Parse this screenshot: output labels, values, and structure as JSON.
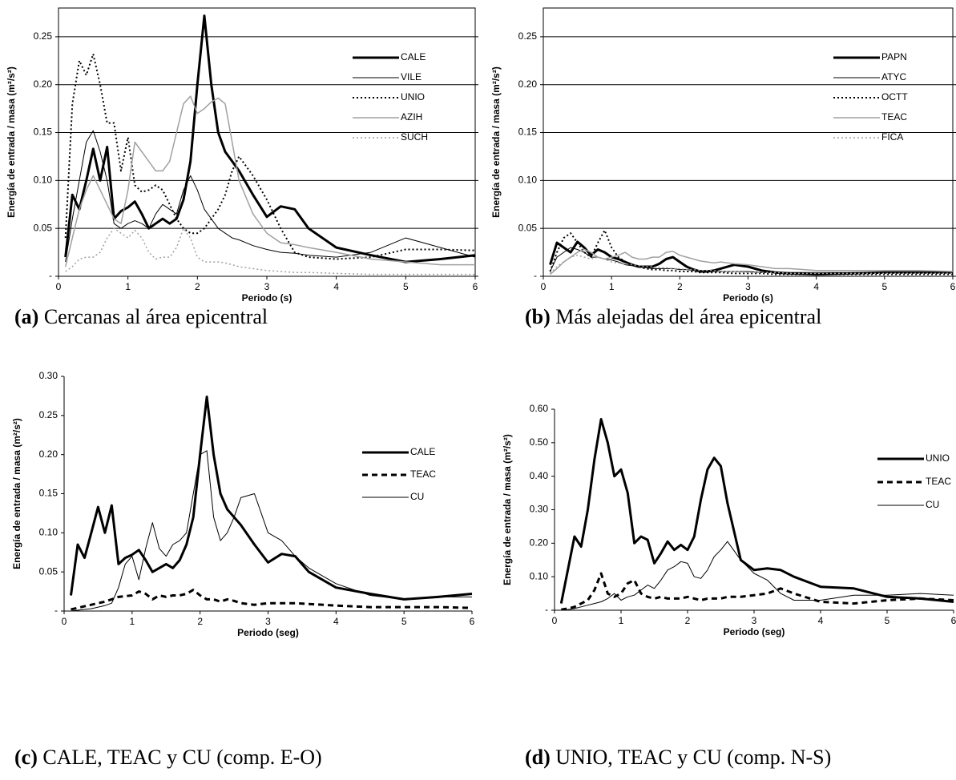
{
  "chart_data": [
    {
      "type": "line",
      "caption_label": "(a)",
      "caption": "Cercanas al área epicentral",
      "xlabel": "Periodo (s)",
      "ylabel": "Energía de entrada / masa (m²/s²)",
      "xlim": [
        0,
        6
      ],
      "xticks": [
        0,
        1,
        2,
        3,
        4,
        5,
        6
      ],
      "ylim": [
        0,
        0.28
      ],
      "yticks": [
        {
          "value": 0,
          "label": "-"
        },
        0.05,
        {
          "value": 0.1,
          "label": "0.10"
        },
        0.15,
        {
          "value": 0.2,
          "label": "0.20"
        },
        0.25
      ],
      "grid": true,
      "legend": "upper right",
      "x": [
        0.1,
        0.2,
        0.3,
        0.4,
        0.5,
        0.6,
        0.7,
        0.8,
        0.9,
        1.0,
        1.1,
        1.2,
        1.3,
        1.4,
        1.5,
        1.6,
        1.7,
        1.8,
        1.9,
        2.0,
        2.1,
        2.2,
        2.3,
        2.4,
        2.5,
        2.6,
        2.8,
        3.0,
        3.2,
        3.4,
        3.6,
        4.0,
        4.5,
        5.0,
        5.5,
        6.0
      ],
      "series": [
        {
          "name": "CALE",
          "color": "#000000",
          "width": 3,
          "dash": "solid",
          "values": [
            0.02,
            0.085,
            0.07,
            0.1,
            0.133,
            0.1,
            0.135,
            0.06,
            0.068,
            0.072,
            0.078,
            0.065,
            0.05,
            0.055,
            0.06,
            0.055,
            0.06,
            0.08,
            0.12,
            0.2,
            0.272,
            0.2,
            0.15,
            0.13,
            0.12,
            0.11,
            0.085,
            0.062,
            0.073,
            0.07,
            0.05,
            0.03,
            0.022,
            0.015,
            0.018,
            0.022
          ]
        },
        {
          "name": "VILE",
          "color": "#000000",
          "width": 1,
          "dash": "solid",
          "values": [
            0.015,
            0.06,
            0.1,
            0.14,
            0.152,
            0.13,
            0.1,
            0.055,
            0.05,
            0.055,
            0.058,
            0.055,
            0.05,
            0.065,
            0.075,
            0.07,
            0.065,
            0.09,
            0.105,
            0.09,
            0.07,
            0.06,
            0.05,
            0.045,
            0.04,
            0.038,
            0.032,
            0.028,
            0.025,
            0.024,
            0.022,
            0.02,
            0.025,
            0.04,
            0.03,
            0.02
          ]
        },
        {
          "name": "UNIO",
          "color": "#000000",
          "width": 2,
          "dash": "dotted",
          "values": [
            0.04,
            0.18,
            0.225,
            0.21,
            0.232,
            0.2,
            0.16,
            0.16,
            0.11,
            0.145,
            0.095,
            0.088,
            0.09,
            0.095,
            0.09,
            0.075,
            0.06,
            0.05,
            0.045,
            0.045,
            0.05,
            0.06,
            0.07,
            0.085,
            0.11,
            0.125,
            0.105,
            0.08,
            0.05,
            0.025,
            0.02,
            0.018,
            0.02,
            0.028,
            0.028,
            0.027
          ]
        },
        {
          "name": "AZIH",
          "color": "#a0a0a0",
          "width": 1.5,
          "dash": "solid",
          "values": [
            0.01,
            0.04,
            0.07,
            0.09,
            0.105,
            0.09,
            0.075,
            0.06,
            0.055,
            0.09,
            0.14,
            0.13,
            0.12,
            0.11,
            0.11,
            0.12,
            0.15,
            0.18,
            0.188,
            0.17,
            0.175,
            0.182,
            0.186,
            0.18,
            0.14,
            0.1,
            0.065,
            0.045,
            0.035,
            0.033,
            0.03,
            0.025,
            0.018,
            0.015,
            0.012,
            0.012
          ]
        },
        {
          "name": "SUCH",
          "color": "#a0a0a0",
          "width": 1.5,
          "dash": "dotted",
          "values": [
            0.005,
            0.01,
            0.018,
            0.02,
            0.02,
            0.025,
            0.04,
            0.05,
            0.045,
            0.04,
            0.048,
            0.04,
            0.025,
            0.018,
            0.02,
            0.02,
            0.03,
            0.05,
            0.04,
            0.02,
            0.015,
            0.015,
            0.015,
            0.014,
            0.012,
            0.01,
            0.008,
            0.006,
            0.005,
            0.004,
            0.004,
            0.003,
            0.002,
            0.002,
            0.002,
            0.002
          ]
        }
      ]
    },
    {
      "type": "line",
      "caption_label": "(b)",
      "caption": "Más alejadas del área epicentral",
      "xlabel": "Periodo (s)",
      "ylabel": "Energía de entrada / masa (m²/s²)",
      "xlim": [
        0,
        6
      ],
      "xticks": [
        0,
        1,
        2,
        3,
        4,
        5,
        6
      ],
      "ylim": [
        0,
        0.28
      ],
      "yticks": [
        {
          "value": 0,
          "label": "-"
        },
        0.05,
        {
          "value": 0.1,
          "label": "0.10"
        },
        0.15,
        {
          "value": 0.2,
          "label": "0.20"
        },
        0.25
      ],
      "grid": true,
      "legend": "upper right",
      "x": [
        0.1,
        0.2,
        0.3,
        0.4,
        0.5,
        0.6,
        0.7,
        0.8,
        0.9,
        1.0,
        1.1,
        1.2,
        1.3,
        1.4,
        1.5,
        1.6,
        1.7,
        1.8,
        1.9,
        2.0,
        2.1,
        2.2,
        2.3,
        2.4,
        2.5,
        2.6,
        2.8,
        3.0,
        3.2,
        3.4,
        3.6,
        4.0,
        4.5,
        5.0,
        5.5,
        6.0
      ],
      "series": [
        {
          "name": "PAPN",
          "color": "#000000",
          "width": 3,
          "dash": "solid",
          "values": [
            0.012,
            0.035,
            0.03,
            0.025,
            0.036,
            0.03,
            0.022,
            0.028,
            0.025,
            0.02,
            0.018,
            0.015,
            0.012,
            0.01,
            0.01,
            0.01,
            0.013,
            0.018,
            0.02,
            0.015,
            0.01,
            0.007,
            0.005,
            0.005,
            0.006,
            0.008,
            0.012,
            0.01,
            0.006,
            0.004,
            0.003,
            0.002,
            0.003,
            0.004,
            0.004,
            0.004
          ]
        },
        {
          "name": "ATYC",
          "color": "#000000",
          "width": 1,
          "dash": "solid",
          "values": [
            0.005,
            0.02,
            0.025,
            0.03,
            0.028,
            0.025,
            0.02,
            0.02,
            0.018,
            0.017,
            0.015,
            0.012,
            0.011,
            0.01,
            0.009,
            0.008,
            0.008,
            0.008,
            0.008,
            0.007,
            0.007,
            0.006,
            0.006,
            0.006,
            0.005,
            0.005,
            0.005,
            0.005,
            0.004,
            0.004,
            0.004,
            0.004,
            0.004,
            0.004,
            0.004,
            0.004
          ]
        },
        {
          "name": "OCTT",
          "color": "#000000",
          "width": 2,
          "dash": "dotted",
          "values": [
            0.005,
            0.025,
            0.04,
            0.045,
            0.035,
            0.025,
            0.02,
            0.035,
            0.048,
            0.03,
            0.02,
            0.015,
            0.012,
            0.01,
            0.008,
            0.007,
            0.007,
            0.006,
            0.006,
            0.005,
            0.005,
            0.005,
            0.004,
            0.004,
            0.004,
            0.004,
            0.003,
            0.003,
            0.003,
            0.002,
            0.002,
            0.002,
            0.002,
            0.002,
            0.002,
            0.002
          ]
        },
        {
          "name": "TEAC",
          "color": "#a0a0a0",
          "width": 1.5,
          "dash": "solid",
          "values": [
            0.002,
            0.008,
            0.015,
            0.02,
            0.025,
            0.028,
            0.025,
            0.02,
            0.018,
            0.02,
            0.022,
            0.025,
            0.02,
            0.018,
            0.018,
            0.02,
            0.02,
            0.025,
            0.026,
            0.022,
            0.02,
            0.018,
            0.016,
            0.015,
            0.014,
            0.015,
            0.013,
            0.012,
            0.01,
            0.008,
            0.008,
            0.006,
            0.006,
            0.006,
            0.006,
            0.005
          ]
        },
        {
          "name": "FICA",
          "color": "#a0a0a0",
          "width": 1.5,
          "dash": "dotted",
          "values": [
            0.003,
            0.01,
            0.015,
            0.02,
            0.022,
            0.02,
            0.018,
            0.02,
            0.018,
            0.015,
            0.014,
            0.013,
            0.012,
            0.011,
            0.01,
            0.01,
            0.009,
            0.009,
            0.008,
            0.008,
            0.007,
            0.007,
            0.006,
            0.006,
            0.006,
            0.005,
            0.005,
            0.004,
            0.004,
            0.004,
            0.003,
            0.003,
            0.003,
            0.003,
            0.003,
            0.003
          ]
        }
      ]
    },
    {
      "type": "line",
      "caption_label": "(c)",
      "caption": "CALE, TEAC y CU  (comp. E-O)",
      "xlabel": "Periodo (seg)",
      "ylabel": "Energía de entrada / masa (m²/s²)",
      "xlim": [
        0,
        6
      ],
      "xticks": [
        0,
        1,
        2,
        3,
        4,
        5,
        6
      ],
      "ylim": [
        0,
        0.3
      ],
      "yticks": [
        {
          "value": 0,
          "label": "-"
        },
        0.05,
        {
          "value": 0.1,
          "label": "0.10"
        },
        0.15,
        {
          "value": 0.2,
          "label": "0.20"
        },
        0.25,
        {
          "value": 0.3,
          "label": "0.30"
        }
      ],
      "grid": false,
      "legend": "upper right",
      "x": [
        0.1,
        0.2,
        0.3,
        0.4,
        0.5,
        0.6,
        0.7,
        0.8,
        0.9,
        1.0,
        1.1,
        1.2,
        1.3,
        1.4,
        1.5,
        1.6,
        1.7,
        1.8,
        1.9,
        2.0,
        2.1,
        2.2,
        2.3,
        2.4,
        2.5,
        2.6,
        2.8,
        3.0,
        3.2,
        3.4,
        3.6,
        4.0,
        4.5,
        5.0,
        5.5,
        6.0
      ],
      "series": [
        {
          "name": "CALE",
          "color": "#000000",
          "width": 3,
          "dash": "solid",
          "values": [
            0.02,
            0.085,
            0.068,
            0.1,
            0.133,
            0.1,
            0.135,
            0.06,
            0.068,
            0.072,
            0.078,
            0.065,
            0.05,
            0.055,
            0.06,
            0.055,
            0.065,
            0.085,
            0.12,
            0.2,
            0.274,
            0.2,
            0.15,
            0.13,
            0.12,
            0.11,
            0.085,
            0.062,
            0.073,
            0.07,
            0.05,
            0.03,
            0.022,
            0.015,
            0.018,
            0.022
          ]
        },
        {
          "name": "TEAC",
          "color": "#000000",
          "width": 3,
          "dash": "dashed",
          "values": [
            0.002,
            0.004,
            0.006,
            0.008,
            0.01,
            0.012,
            0.015,
            0.018,
            0.019,
            0.02,
            0.025,
            0.022,
            0.015,
            0.02,
            0.018,
            0.02,
            0.02,
            0.022,
            0.027,
            0.02,
            0.015,
            0.015,
            0.012,
            0.015,
            0.013,
            0.01,
            0.008,
            0.01,
            0.01,
            0.01,
            0.009,
            0.007,
            0.005,
            0.005,
            0.005,
            0.004
          ]
        },
        {
          "name": "CU",
          "color": "#000000",
          "width": 1,
          "dash": "solid",
          "values": [
            0.0,
            0.001,
            0.002,
            0.003,
            0.005,
            0.007,
            0.01,
            0.03,
            0.06,
            0.07,
            0.04,
            0.08,
            0.113,
            0.08,
            0.07,
            0.085,
            0.09,
            0.1,
            0.15,
            0.2,
            0.205,
            0.12,
            0.09,
            0.1,
            0.12,
            0.145,
            0.15,
            0.1,
            0.09,
            0.07,
            0.055,
            0.035,
            0.02,
            0.015,
            0.018,
            0.018
          ]
        }
      ]
    },
    {
      "type": "line",
      "caption_label": "(d)",
      "caption": "UNIO, TEAC y CU (comp. N-S)",
      "xlabel": "Periodo (seg)",
      "ylabel": "Energía de entrada / masa (m²/s²)",
      "xlim": [
        0,
        6
      ],
      "xticks": [
        0,
        1,
        2,
        3,
        4,
        5,
        6
      ],
      "ylim": [
        0,
        0.6
      ],
      "yticks": [
        {
          "value": 0,
          "label": "-"
        },
        {
          "value": 0.1,
          "label": "0.10"
        },
        {
          "value": 0.2,
          "label": "0.20"
        },
        {
          "value": 0.3,
          "label": "0.30"
        },
        {
          "value": 0.4,
          "label": "0.40"
        },
        {
          "value": 0.5,
          "label": "0.50"
        },
        {
          "value": 0.6,
          "label": "0.60"
        }
      ],
      "grid": false,
      "legend": "upper right",
      "x": [
        0.1,
        0.2,
        0.3,
        0.4,
        0.5,
        0.6,
        0.7,
        0.8,
        0.9,
        1.0,
        1.1,
        1.2,
        1.3,
        1.4,
        1.5,
        1.6,
        1.7,
        1.8,
        1.9,
        2.0,
        2.1,
        2.2,
        2.3,
        2.4,
        2.5,
        2.6,
        2.8,
        3.0,
        3.2,
        3.4,
        3.6,
        4.0,
        4.5,
        5.0,
        5.5,
        6.0
      ],
      "series": [
        {
          "name": "UNIO",
          "color": "#000000",
          "width": 3,
          "dash": "solid",
          "values": [
            0.02,
            0.12,
            0.22,
            0.19,
            0.3,
            0.45,
            0.57,
            0.5,
            0.4,
            0.42,
            0.35,
            0.2,
            0.22,
            0.21,
            0.14,
            0.17,
            0.205,
            0.18,
            0.195,
            0.18,
            0.22,
            0.33,
            0.42,
            0.455,
            0.43,
            0.32,
            0.15,
            0.12,
            0.125,
            0.12,
            0.1,
            0.07,
            0.065,
            0.04,
            0.035,
            0.025
          ]
        },
        {
          "name": "TEAC",
          "color": "#000000",
          "width": 3,
          "dash": "dashed",
          "values": [
            0.002,
            0.005,
            0.01,
            0.02,
            0.03,
            0.06,
            0.11,
            0.05,
            0.04,
            0.05,
            0.08,
            0.09,
            0.05,
            0.04,
            0.035,
            0.04,
            0.035,
            0.035,
            0.035,
            0.04,
            0.035,
            0.03,
            0.035,
            0.035,
            0.035,
            0.04,
            0.04,
            0.045,
            0.05,
            0.065,
            0.05,
            0.025,
            0.02,
            0.03,
            0.035,
            0.03
          ]
        },
        {
          "name": "CU",
          "color": "#000000",
          "width": 1,
          "dash": "solid",
          "values": [
            0.0,
            0.002,
            0.005,
            0.01,
            0.015,
            0.02,
            0.025,
            0.035,
            0.05,
            0.03,
            0.04,
            0.045,
            0.06,
            0.075,
            0.065,
            0.09,
            0.12,
            0.13,
            0.145,
            0.14,
            0.1,
            0.095,
            0.12,
            0.16,
            0.18,
            0.205,
            0.15,
            0.11,
            0.09,
            0.05,
            0.03,
            0.03,
            0.045,
            0.045,
            0.05,
            0.045
          ]
        }
      ]
    }
  ]
}
